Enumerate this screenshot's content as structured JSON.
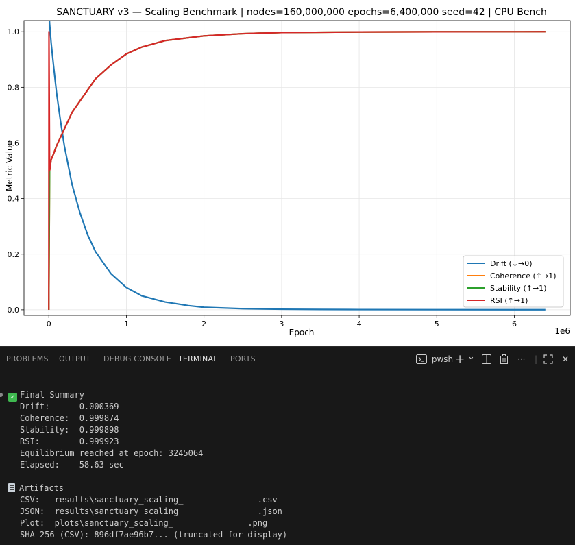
{
  "chart_data": {
    "type": "line",
    "title": "SANCTUARY v3 — Scaling Benchmark | nodes=160,000,000 epochs=6,400,000 seed=42 | CPU Bench",
    "xlabel": "Epoch",
    "ylabel": "Metric Value",
    "x_scale_label": "1e6",
    "xlim": [
      -0.32,
      6.72
    ],
    "ylim": [
      -0.02,
      1.04
    ],
    "x_ticks": [
      0,
      1,
      2,
      3,
      4,
      5,
      6
    ],
    "y_ticks": [
      0.0,
      0.2,
      0.4,
      0.6,
      0.8,
      1.0
    ],
    "x_tick_labels": [
      "0",
      "1",
      "2",
      "3",
      "4",
      "5",
      "6"
    ],
    "y_tick_labels": [
      "0.0",
      "0.2",
      "0.4",
      "0.6",
      "0.8",
      "1.0"
    ],
    "grid": true,
    "legend_position": "lower-right",
    "series": [
      {
        "name": "Drift (↓→0)",
        "color": "#1f77b4",
        "x": [
          0,
          0.01,
          0.03,
          0.06,
          0.1,
          0.15,
          0.2,
          0.3,
          0.4,
          0.5,
          0.6,
          0.8,
          1.0,
          1.2,
          1.5,
          1.8,
          2.0,
          2.5,
          3.0,
          3.5,
          4.0,
          5.0,
          6.0,
          6.4
        ],
        "y": [
          1.09,
          1.03,
          0.96,
          0.88,
          0.78,
          0.68,
          0.59,
          0.45,
          0.35,
          0.27,
          0.21,
          0.13,
          0.08,
          0.05,
          0.028,
          0.015,
          0.009,
          0.004,
          0.002,
          0.0012,
          0.0008,
          0.0005,
          0.0004,
          0.00037
        ]
      },
      {
        "name": "Coherence (↑→1)",
        "color": "#ff7f0e",
        "x": [
          0,
          0.01,
          0.03,
          0.06,
          0.1,
          0.2,
          0.3,
          0.4,
          0.6,
          0.8,
          1.0,
          1.2,
          1.5,
          2.0,
          2.5,
          3.0,
          4.0,
          5.0,
          6.0,
          6.4
        ],
        "y": [
          0.0,
          0.5,
          0.54,
          0.56,
          0.59,
          0.65,
          0.71,
          0.75,
          0.83,
          0.88,
          0.92,
          0.945,
          0.968,
          0.985,
          0.993,
          0.997,
          0.999,
          0.9996,
          0.9998,
          0.999874
        ]
      },
      {
        "name": "Stability (↑→1)",
        "color": "#2ca02c",
        "x": [
          0,
          0.01,
          0.03,
          0.06,
          0.1,
          0.2,
          0.3,
          0.4,
          0.6,
          0.8,
          1.0,
          1.2,
          1.5,
          2.0,
          2.5,
          3.0,
          4.0,
          5.0,
          6.0,
          6.4
        ],
        "y": [
          0.0,
          0.5,
          0.54,
          0.56,
          0.59,
          0.65,
          0.71,
          0.75,
          0.83,
          0.88,
          0.92,
          0.945,
          0.968,
          0.985,
          0.993,
          0.997,
          0.999,
          0.9996,
          0.9998,
          0.999898
        ]
      },
      {
        "name": "RSI (↑→1)",
        "color": "#d62728",
        "x": [
          0,
          0.002,
          0.01,
          0.03,
          0.06,
          0.1,
          0.2,
          0.3,
          0.4,
          0.6,
          0.8,
          1.0,
          1.2,
          1.5,
          2.0,
          2.5,
          3.0,
          4.0,
          5.0,
          6.0,
          6.4
        ],
        "y": [
          0.0,
          1.0,
          0.5,
          0.54,
          0.56,
          0.59,
          0.65,
          0.71,
          0.75,
          0.83,
          0.88,
          0.92,
          0.945,
          0.968,
          0.985,
          0.993,
          0.997,
          0.999,
          0.9996,
          0.9998,
          0.999923
        ]
      }
    ]
  },
  "panel": {
    "tabs": [
      "PROBLEMS",
      "OUTPUT",
      "DEBUG CONSOLE",
      "TERMINAL",
      "PORTS"
    ],
    "active_tab": "TERMINAL",
    "shell_label": "pwsh",
    "plus_icon": "+",
    "chevron_icon": "⌄",
    "more_icon": "···",
    "close_icon": "✕"
  },
  "terminal": {
    "summary_title": "Final Summary",
    "drift": "Drift:      0.000369",
    "coherence": "Coherence:  0.999874",
    "stability": "Stability:  0.999898",
    "rsi": "RSI:        0.999923",
    "equilibrium": "Equilibrium reached at epoch: 3245064",
    "elapsed": "Elapsed:    58.63 sec",
    "artifacts_title": "Artifacts",
    "csv": "CSV:   results\\sanctuary_scaling_               .csv",
    "json": "JSON:  results\\sanctuary_scaling_               .json",
    "plot": "Plot:  plots\\sanctuary_scaling_               .png",
    "sha": "SHA-256 (CSV): 896df7ae96b7... (truncated for display)"
  }
}
